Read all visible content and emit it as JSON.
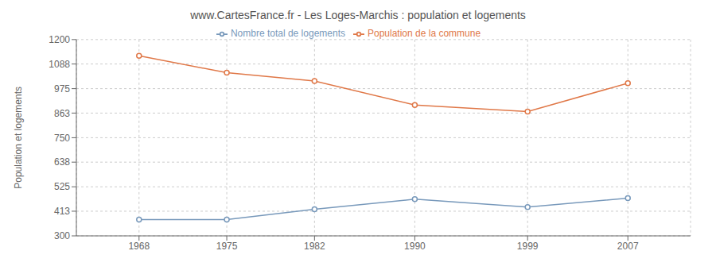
{
  "chart_data": {
    "type": "line",
    "title": "www.CartesFrance.fr - Les Loges-Marchis : population et logements",
    "ylabel": "Population et logements",
    "x": [
      1968,
      1975,
      1982,
      1990,
      1999,
      2007
    ],
    "series": [
      {
        "name": "Nombre total de logements",
        "color": "#7899bb",
        "values": [
          375,
          375,
          422,
          468,
          432,
          473
        ],
        "marker": "circle"
      },
      {
        "name": "Population de la commune",
        "color": "#e07848",
        "values": [
          1126,
          1048,
          1010,
          900,
          870,
          1000
        ],
        "marker": "circle"
      }
    ],
    "xlim": [
      1963,
      2012
    ],
    "xticks": [
      1968,
      1975,
      1982,
      1990,
      1999,
      2007
    ],
    "ylim": [
      300,
      1200
    ],
    "yticks": [
      300,
      413,
      525,
      638,
      750,
      863,
      975,
      1088,
      1200
    ],
    "grid": true,
    "legend": "top"
  }
}
